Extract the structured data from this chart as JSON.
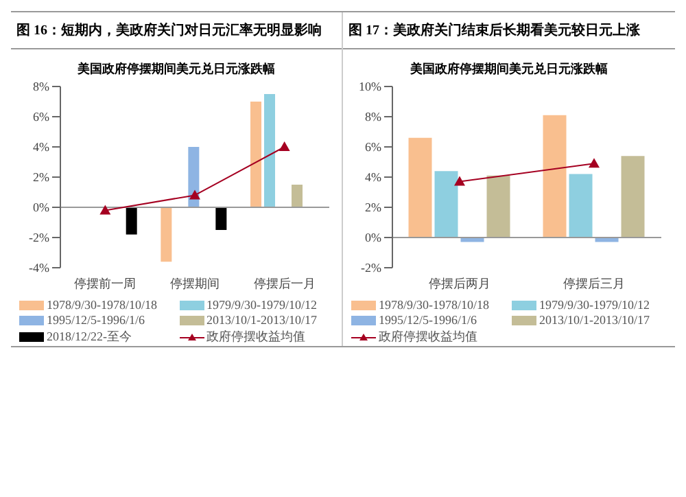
{
  "chart_data": [
    {
      "type": "bar",
      "title": "图 16：短期内，美政府关门对日元汇率无明显影响",
      "subtitle": "美国政府停摆期间美元兑日元涨跌幅",
      "categories": [
        "停摆前一周",
        "停摆期间",
        "停摆后一月"
      ],
      "ylim": [
        -4,
        8
      ],
      "yticks": [
        {
          "value": -4,
          "label": "-4%"
        },
        {
          "value": -2,
          "label": "-2%"
        },
        {
          "value": 0,
          "label": "0%"
        },
        {
          "value": 2,
          "label": "2%"
        },
        {
          "value": 4,
          "label": "4%"
        },
        {
          "value": 6,
          "label": "6%"
        },
        {
          "value": 8,
          "label": "8%"
        }
      ],
      "legend": "bottom",
      "marker": "triangle",
      "series": [
        {
          "name": "1978/9/30-1978/10/18",
          "color": "#f9bf8f",
          "values": [
            null,
            -3.6,
            7
          ]
        },
        {
          "name": "1979/9/30-1979/10/12",
          "color": "#8ecfe0",
          "values": [
            null,
            null,
            7.5
          ]
        },
        {
          "name": "1995/12/5-1996/1/6",
          "color": "#8eb4e3",
          "values": [
            null,
            4,
            null
          ]
        },
        {
          "name": "2013/10/1-2013/10/17",
          "color": "#c4bd97",
          "values": [
            null,
            null,
            1.5
          ]
        },
        {
          "name": "2018/12/22-至今",
          "color": "#000000",
          "values": [
            -1.8,
            -1.5,
            null
          ]
        },
        {
          "name": "政府停摆收益均值",
          "type": "line",
          "color": "#a50021",
          "values": [
            -0.2,
            0.8,
            4
          ]
        }
      ]
    },
    {
      "type": "bar",
      "title": "图 17：美政府关门结束后长期看美元较日元上涨",
      "subtitle": "美国政府停摆期间美元兑日元涨跌幅",
      "categories": [
        "停摆后两月",
        "停摆后三月"
      ],
      "ylim": [
        -2,
        10
      ],
      "yticks": [
        {
          "value": -2,
          "label": "-2%"
        },
        {
          "value": 0,
          "label": "0%"
        },
        {
          "value": 2,
          "label": "2%"
        },
        {
          "value": 4,
          "label": "4%"
        },
        {
          "value": 6,
          "label": "6%"
        },
        {
          "value": 8,
          "label": "8%"
        },
        {
          "value": 10,
          "label": "10%"
        }
      ],
      "legend": "bottom",
      "marker": "triangle",
      "series": [
        {
          "name": "1978/9/30-1978/10/18",
          "color": "#f9bf8f",
          "values": [
            6.6,
            8.1
          ]
        },
        {
          "name": "1979/9/30-1979/10/12",
          "color": "#8ecfe0",
          "values": [
            4.4,
            4.2
          ]
        },
        {
          "name": "1995/12/5-1996/1/6",
          "color": "#8eb4e3",
          "values": [
            -0.3,
            -0.3
          ]
        },
        {
          "name": "2013/10/1-2013/10/17",
          "color": "#c4bd97",
          "values": [
            4.1,
            5.4
          ]
        },
        {
          "name": "政府停摆收益均值",
          "type": "line",
          "color": "#a50021",
          "values": [
            3.7,
            4.9
          ]
        }
      ]
    }
  ]
}
